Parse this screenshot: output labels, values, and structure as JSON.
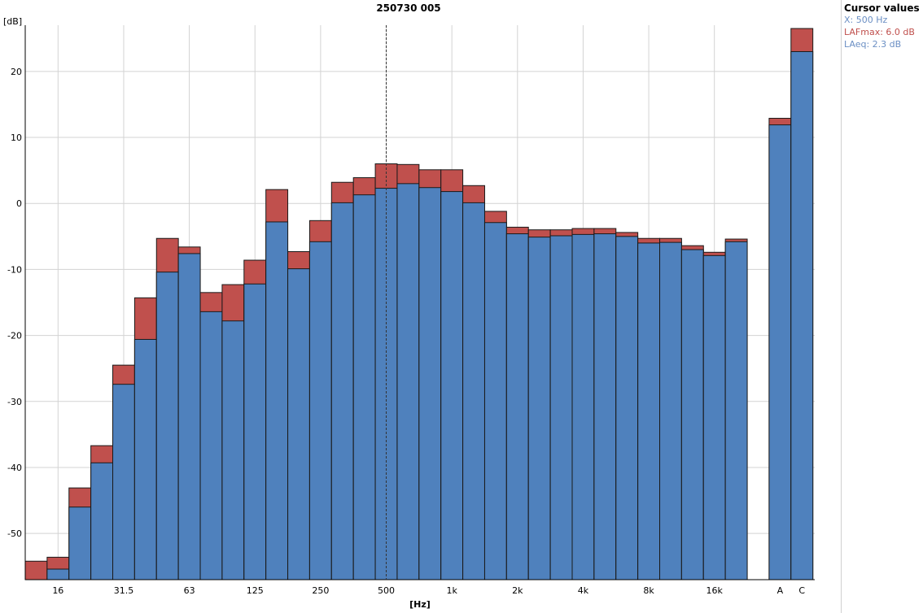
{
  "colors": {
    "laeq": "#4f81bd",
    "lafmax": "#c0504d",
    "grid": "#d3d3d3",
    "cursor": "#333333"
  },
  "cursor_panel": {
    "title": "Cursor values",
    "x_line": "X: 500 Hz",
    "lafmax_line": "LAFmax: 6.0 dB",
    "laeq_line": "LAeq: 2.3 dB"
  },
  "chart_data": {
    "type": "bar",
    "title": "250730 005",
    "ylabel": "[dB]",
    "xlabel": "[Hz]",
    "ylim": [
      -57,
      27
    ],
    "yticks": [
      20,
      10,
      0,
      -10,
      -20,
      -30,
      -40,
      -50
    ],
    "grid": true,
    "stacked_overlay": true,
    "cursor_at": "500",
    "categories": [
      "12.5",
      "16",
      "20",
      "25",
      "31.5",
      "40",
      "50",
      "63",
      "80",
      "100",
      "125",
      "160",
      "200",
      "250",
      "315",
      "400",
      "500",
      "630",
      "800",
      "1k",
      "1.25k",
      "1.6k",
      "2k",
      "2.5k",
      "3.15k",
      "4k",
      "5k",
      "6.3k",
      "8k",
      "10k",
      "12.5k",
      "16k",
      "20k",
      "A",
      "C"
    ],
    "xtick_labels": {
      "16": "16",
      "31.5": "31.5",
      "63": "63",
      "125": "125",
      "250": "250",
      "500": "500",
      "1k": "1k",
      "2k": "2k",
      "4k": "4k",
      "8k": "8k",
      "16k": "16k",
      "A": "A",
      "C": "C"
    },
    "series": [
      {
        "name": "LAFmax",
        "values": [
          -54.2,
          -53.6,
          -43.1,
          -36.7,
          -24.5,
          -14.3,
          -5.3,
          -6.6,
          -13.5,
          -12.3,
          -8.6,
          2.1,
          -7.3,
          -2.6,
          3.2,
          3.9,
          6.0,
          5.9,
          5.1,
          5.1,
          2.7,
          -1.2,
          -3.6,
          -4.0,
          -4.0,
          -3.8,
          -3.8,
          -4.4,
          -5.3,
          -5.3,
          -6.4,
          -7.4,
          -5.4,
          12.9,
          26.5
        ]
      },
      {
        "name": "LAeq",
        "values": [
          -57.5,
          -55.4,
          -46.0,
          -39.3,
          -27.4,
          -20.6,
          -10.4,
          -7.6,
          -16.4,
          -17.8,
          -12.2,
          -2.8,
          -9.9,
          -5.8,
          0.1,
          1.3,
          2.3,
          3.0,
          2.4,
          1.8,
          0.1,
          -2.9,
          -4.6,
          -5.1,
          -4.9,
          -4.7,
          -4.6,
          -5.0,
          -6.0,
          -5.9,
          -7.0,
          -7.9,
          -5.8,
          11.9,
          23.0
        ]
      }
    ]
  }
}
